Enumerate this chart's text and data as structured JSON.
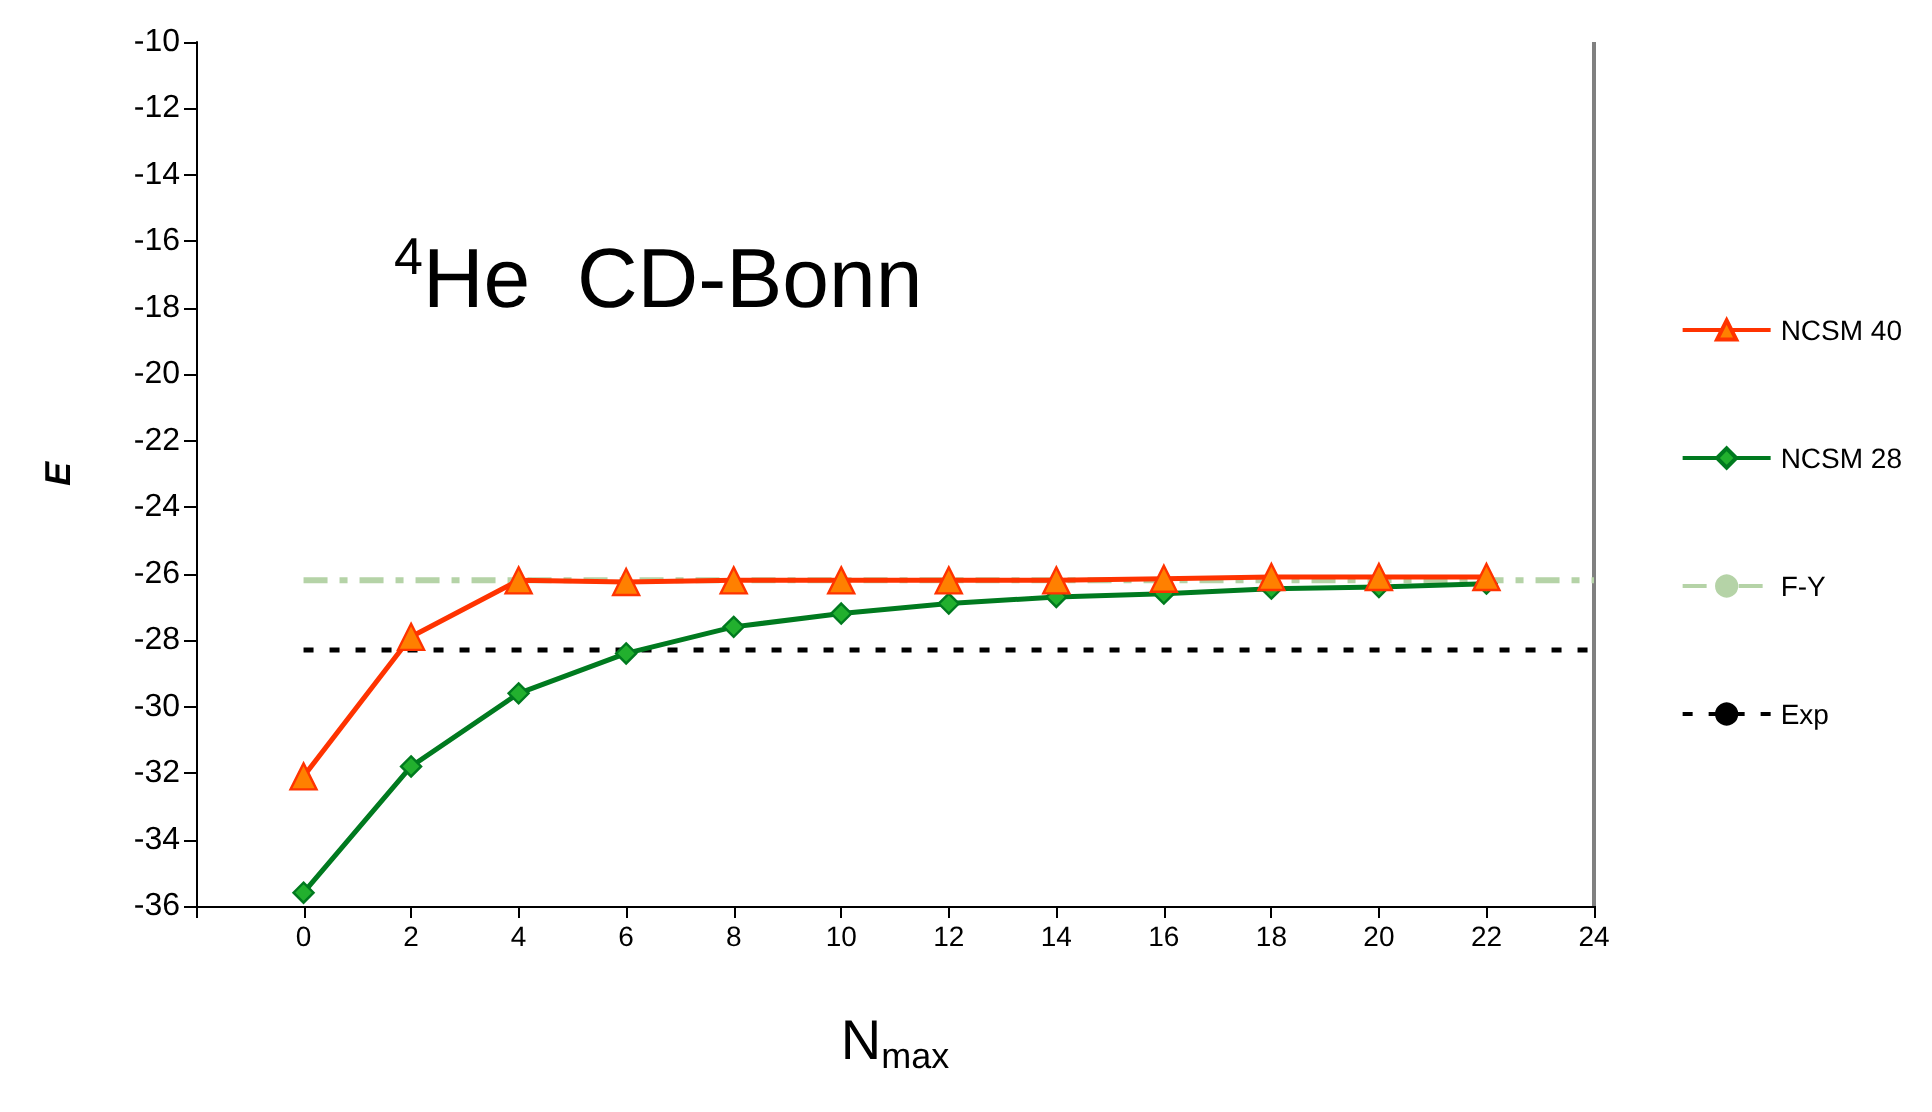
{
  "chart_data": {
    "type": "line",
    "title": "$^{4}$He  CD-Bonn",
    "xlabel": "N$_{max}$",
    "ylabel": "E",
    "xlim": [
      -2,
      24
    ],
    "xticks": [
      {
        "value": -2,
        "label": null
      },
      0,
      2,
      4,
      6,
      8,
      10,
      12,
      14,
      16,
      18,
      20,
      22,
      24
    ],
    "ylim": [
      -36,
      -10
    ],
    "yticks": [
      -36,
      -34,
      -32,
      -30,
      -28,
      -26,
      -24,
      -22,
      -20,
      -18,
      -16,
      -14,
      -12,
      -10
    ],
    "grid": false,
    "legend": "right",
    "series": [
      {
        "name": "NCSM 40",
        "color": "#ff3300",
        "marker": "triangle",
        "line_style": "solid",
        "x": [
          0,
          2,
          4,
          6,
          8,
          10,
          12,
          14,
          16,
          18,
          20,
          22
        ],
        "values": [
          -32.1,
          -27.9,
          -26.2,
          -26.25,
          -26.2,
          -26.2,
          -26.2,
          -26.2,
          -26.15,
          -26.1,
          -26.1,
          -26.1
        ]
      },
      {
        "name": "NCSM 28",
        "color": "#007a1f",
        "marker": "diamond",
        "line_style": "solid",
        "x": [
          0,
          2,
          4,
          6,
          8,
          10,
          12,
          14,
          16,
          18,
          20,
          22
        ],
        "values": [
          -35.6,
          -31.8,
          -29.6,
          -28.4,
          -27.6,
          -27.2,
          -26.9,
          -26.7,
          -26.6,
          -26.45,
          -26.4,
          -26.3
        ]
      },
      {
        "name": "F-Y",
        "color": "#b5d3a7",
        "marker": "none",
        "line_style": "dashed",
        "x": [
          0,
          24
        ],
        "values": [
          -26.2,
          -26.2
        ]
      },
      {
        "name": "Exp",
        "color": "#000000",
        "marker": "none",
        "line_style": "dotted",
        "x": [
          0,
          24
        ],
        "values": [
          -28.3,
          -28.3
        ]
      }
    ]
  }
}
